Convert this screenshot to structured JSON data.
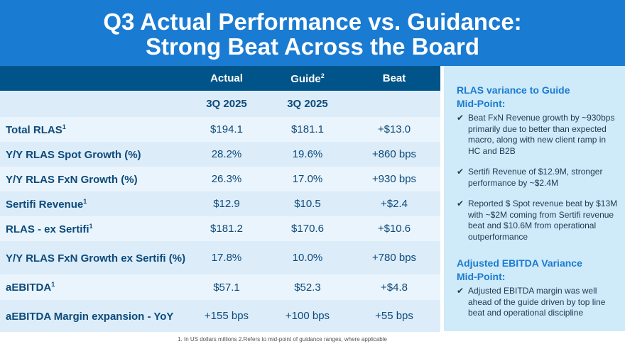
{
  "title": {
    "line1": "Q3 Actual Performance vs. Guidance:",
    "line2": "Strong Beat Across the Board"
  },
  "table": {
    "headers": {
      "actual": "Actual",
      "guide": "Guide",
      "guide_sup": "2",
      "beat": "Beat"
    },
    "subheaders": {
      "actual": "3Q 2025",
      "guide": "3Q 2025"
    },
    "rows": [
      {
        "label": "Total RLAS",
        "sup": "1",
        "actual": "$194.1",
        "guide": "$181.1",
        "beat": "+$13.0"
      },
      {
        "label": "Y/Y RLAS Spot Growth (%)",
        "sup": "",
        "actual": "28.2%",
        "guide": "19.6%",
        "beat": "+860 bps"
      },
      {
        "label": "Y/Y RLAS FxN Growth (%)",
        "sup": "",
        "actual": "26.3%",
        "guide": "17.0%",
        "beat": "+930 bps"
      },
      {
        "label": "Sertifi Revenue",
        "sup": "1",
        "actual": "$12.9",
        "guide": "$10.5",
        "beat": "+$2.4"
      },
      {
        "label": "RLAS - ex Sertifi",
        "sup": "1",
        "actual": "$181.2",
        "guide": "$170.6",
        "beat": "+$10.6"
      },
      {
        "label": "Y/Y RLAS FxN Growth ex Sertifi (%)",
        "sup": "",
        "actual": "17.8%",
        "guide": "10.0%",
        "beat": "+780 bps"
      },
      {
        "label": "aEBITDA",
        "sup": "1",
        "actual": "$57.1",
        "guide": "$52.3",
        "beat": "+$4.8"
      },
      {
        "label": "aEBITDA Margin expansion - YoY",
        "sup": "",
        "actual": "+155 bps",
        "guide": "+100 bps",
        "beat": "+55 bps"
      }
    ]
  },
  "panel": {
    "heading1": "RLAS variance to Guide Mid-Point:",
    "bullets1": [
      "Beat FxN Revenue growth by ~930bps primarily due to better than expected macro, along with new client ramp in HC and B2B",
      "Sertifi Revenue of $12.9M, stronger performance by ~$2.4M",
      "Reported $ Spot revenue beat by $13M with ~$2M coming from Sertifi revenue beat and $10.6M from operational outperformance"
    ],
    "heading2": "Adjusted EBITDA Variance Mid-Point:",
    "bullets2": [
      "Adjusted EBITDA margin was well ahead of the guide driven by top line beat and operational discipline"
    ],
    "check": "✔"
  },
  "footnote": "1. In US dollars millions  2.Refers to mid-point of guidance ranges, where applicable"
}
